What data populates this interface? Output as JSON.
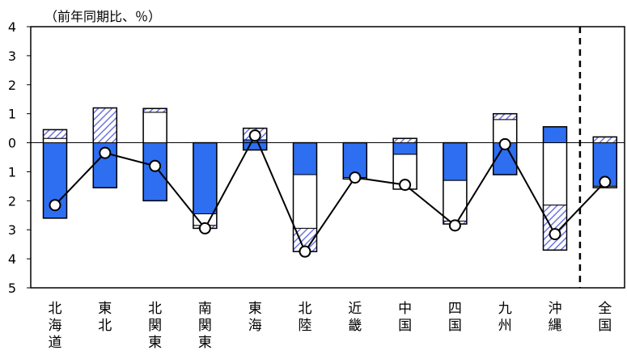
{
  "chart_data": {
    "type": "bar",
    "title": "",
    "unit_label": "（前年同期比、％）",
    "xlabel": "",
    "ylabel": "",
    "ylim": [
      -5,
      4
    ],
    "y_ticks": [
      4,
      3,
      2,
      1,
      0,
      -1,
      -2,
      -3,
      -4,
      -5
    ],
    "y_tick_labels": [
      "4",
      "3",
      "2",
      "1",
      "0",
      "1",
      "2",
      "3",
      "4",
      "5"
    ],
    "categories": [
      "北海道",
      "東北",
      "北関東",
      "南関東",
      "東海",
      "北陸",
      "近畿",
      "中国",
      "四国",
      "九州",
      "沖縄",
      "全国"
    ],
    "category_labels": [
      [
        "北",
        "海",
        "道"
      ],
      [
        "東",
        "北"
      ],
      [
        "北",
        "関",
        "東"
      ],
      [
        "南",
        "関",
        "東"
      ],
      [
        "東",
        "海"
      ],
      [
        "北",
        "陸"
      ],
      [
        "近",
        "畿"
      ],
      [
        "中",
        "国"
      ],
      [
        "四",
        "国"
      ],
      [
        "九",
        "州"
      ],
      [
        "沖",
        "縄"
      ],
      [
        "全",
        "国"
      ]
    ],
    "stack_segments": [
      [
        [
          0,
          -2.6,
          "blue"
        ],
        [
          0,
          0.15,
          "white"
        ],
        [
          0.15,
          0.45,
          "hatched"
        ]
      ],
      [
        [
          0,
          -1.55,
          "blue"
        ],
        [
          0,
          1.2,
          "hatched"
        ]
      ],
      [
        [
          0,
          -2.0,
          "blue"
        ],
        [
          0,
          1.05,
          "white"
        ],
        [
          1.05,
          1.18,
          "hatched"
        ]
      ],
      [
        [
          0,
          -2.45,
          "blue"
        ],
        [
          -2.45,
          -2.85,
          "white"
        ],
        [
          -2.85,
          -2.95,
          "hatched"
        ]
      ],
      [
        [
          0,
          0.1,
          "blue"
        ],
        [
          0,
          -0.25,
          "blue"
        ],
        [
          0.1,
          0.5,
          "hatched"
        ]
      ],
      [
        [
          0,
          -1.1,
          "blue"
        ],
        [
          -1.1,
          -2.95,
          "white"
        ],
        [
          -2.95,
          -3.75,
          "hatched"
        ]
      ],
      [
        [
          0,
          -1.2,
          "blue"
        ],
        [
          -1.2,
          -1.25,
          "white"
        ]
      ],
      [
        [
          0,
          -0.4,
          "blue"
        ],
        [
          -0.4,
          -1.6,
          "white"
        ],
        [
          0,
          0.15,
          "hatched"
        ]
      ],
      [
        [
          0,
          -1.3,
          "blue"
        ],
        [
          -1.3,
          -2.7,
          "white"
        ],
        [
          -2.7,
          -2.8,
          "hatched"
        ]
      ],
      [
        [
          0,
          -1.1,
          "blue"
        ],
        [
          0,
          0.8,
          "white"
        ],
        [
          0.8,
          1.0,
          "hatched"
        ]
      ],
      [
        [
          0,
          0.55,
          "blue"
        ],
        [
          0,
          -2.15,
          "white"
        ],
        [
          -2.15,
          -3.7,
          "hatched"
        ]
      ],
      [
        [
          0,
          -1.5,
          "blue"
        ],
        [
          -1.5,
          -1.55,
          "white"
        ],
        [
          0,
          0.2,
          "hatched"
        ]
      ]
    ],
    "line_values": [
      -2.15,
      -0.35,
      -0.8,
      -2.95,
      0.25,
      -3.75,
      -1.2,
      -1.45,
      -2.85,
      -0.05,
      -3.15,
      -1.35
    ],
    "grid": false,
    "colors": {
      "blue": "#2e6ef0",
      "white": "#ffffff",
      "hatched": "#7f8ce8",
      "line": "#000000",
      "marker": "#ffffff"
    },
    "separator_before_category": "全国"
  }
}
